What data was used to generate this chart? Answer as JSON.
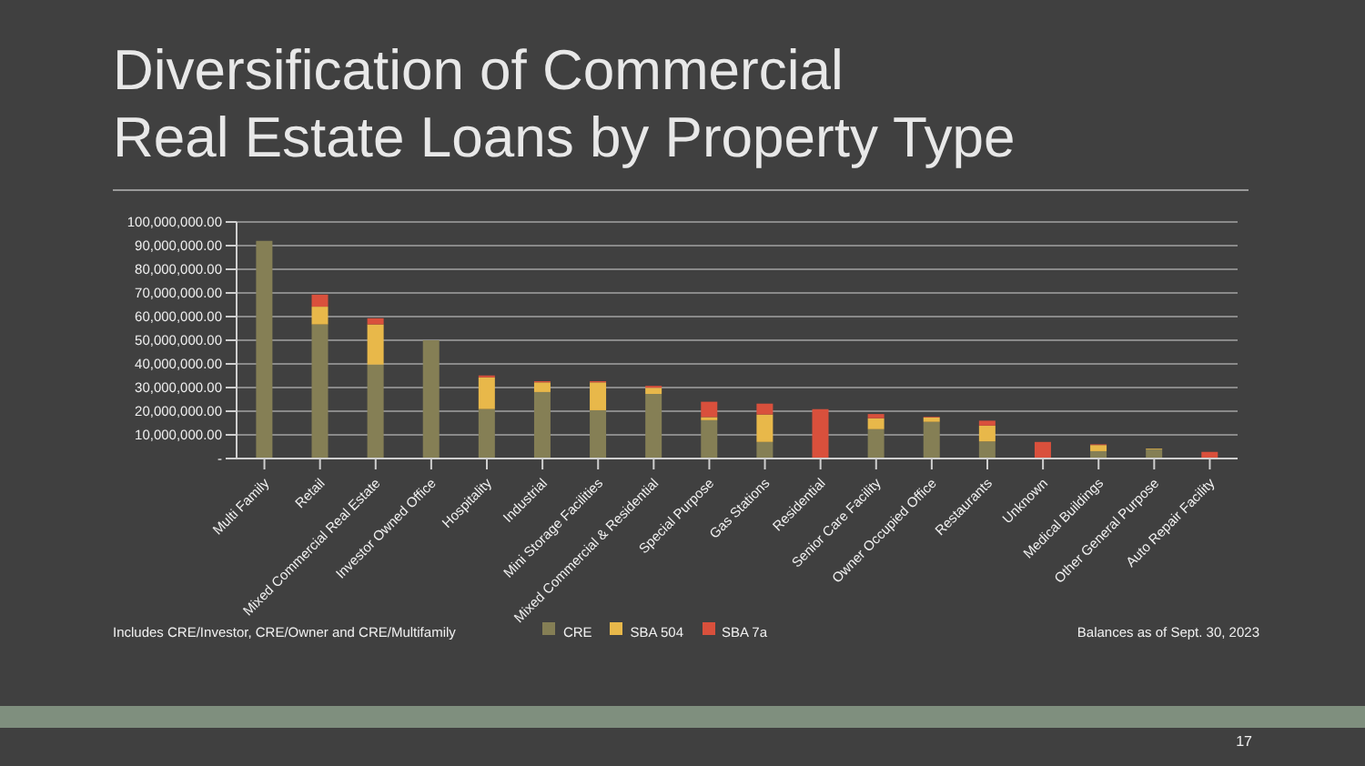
{
  "chart_data": {
    "type": "bar",
    "title": "Diversification of Commercial\nReal Estate Loans by Property Type",
    "categories": [
      "Multi Family",
      "Retail",
      "Mixed Commercial Real Estate",
      "Investor Owned Office",
      "Hospitality",
      "Industrial",
      "Mini Storage Facilities",
      "Mixed Commercial & Residential",
      "Special Purpose",
      "Gas Stations",
      "Residential",
      "Senior Care Facility",
      "Owner Occupied Office",
      "Restaurants",
      "Unknown",
      "Medical Buildings",
      "Other General Purpose",
      "Auto Repair Facility"
    ],
    "stacked": true,
    "series": [
      {
        "name": "CRE",
        "color": "#857f55",
        "values": [
          92000000,
          56700000,
          39700000,
          50000000,
          20900000,
          28100000,
          20400000,
          27300000,
          16200000,
          7000000,
          0,
          12400000,
          15500000,
          7200000,
          0,
          3100000,
          3900000,
          0
        ]
      },
      {
        "name": "SBA 504",
        "color": "#e8b84a",
        "values": [
          0,
          7500000,
          17000000,
          0,
          13400000,
          4100000,
          11800000,
          2600000,
          1300000,
          11600000,
          0,
          4600000,
          1800000,
          6700000,
          0,
          2600000,
          300000,
          0
        ]
      },
      {
        "name": "SBA 7a",
        "color": "#d9503c",
        "values": [
          0,
          5100000,
          2600000,
          0,
          800000,
          500000,
          500000,
          800000,
          6500000,
          4600000,
          20900000,
          1800000,
          300000,
          2100000,
          7000000,
          300000,
          0,
          2800000
        ]
      }
    ],
    "ylim": [
      0,
      100000000
    ],
    "yticks": [
      {
        "value": 0,
        "label": "-"
      },
      {
        "value": 10000000,
        "label": "10,000,000.00"
      },
      {
        "value": 20000000,
        "label": "20,000,000.00"
      },
      {
        "value": 30000000,
        "label": "30,000,000.00"
      },
      {
        "value": 40000000,
        "label": "40,000,000.00"
      },
      {
        "value": 50000000,
        "label": "50,000,000.00"
      },
      {
        "value": 60000000,
        "label": "60,000,000.00"
      },
      {
        "value": 70000000,
        "label": "70,000,000.00"
      },
      {
        "value": 80000000,
        "label": "80,000,000.00"
      },
      {
        "value": 90000000,
        "label": "90,000,000.00"
      },
      {
        "value": 100000000,
        "label": "100,000,000.00"
      }
    ],
    "grid": "y",
    "legend": "bottom",
    "annotations": [
      "Includes CRE/Investor, CRE/Owner  and CRE/Multifamily",
      "Balances as of Sept. 30, 2023",
      "17"
    ]
  }
}
